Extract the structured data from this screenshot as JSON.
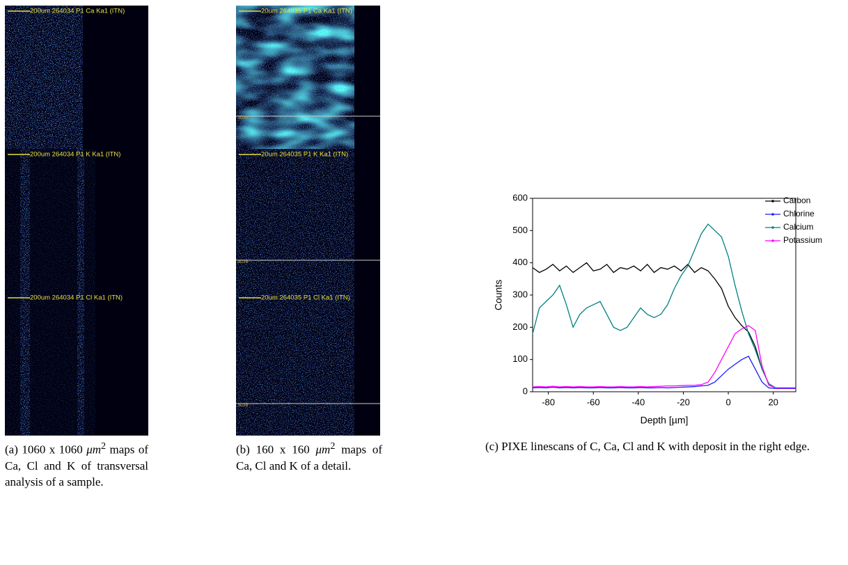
{
  "panels": {
    "a": {
      "maps": [
        {
          "label": "200um  264034 P1  Ca Ka1 (ITN)"
        },
        {
          "label": "200um  264034 P1  K Ka1 (ITN)"
        },
        {
          "label": "200um  264034 P1  Cl Ka1 (ITN)"
        }
      ],
      "caption": {
        "label": "(a)",
        "pre": "1060 x 1060",
        "unit": "μm",
        "sup": "2",
        "post": "maps of Ca, Cl and K of transversal analysis of a sample."
      }
    },
    "b": {
      "maps": [
        {
          "label": "20um  264035 P1  Ca Ka1 (ITN)",
          "marker": "3038"
        },
        {
          "label": "20um  264035 P1  K Ka1 (ITN)",
          "marker": "3038"
        },
        {
          "label": "20um  264035 P1  Cl Ka1 (ITN)",
          "marker": "3038"
        }
      ],
      "caption": {
        "label": "(b)",
        "pre": "160 x 160",
        "unit": "μm",
        "sup": "2",
        "post": "maps of Ca, Cl and K of a detail."
      }
    }
  },
  "chart_data": {
    "type": "line",
    "caption": {
      "label": "(c)",
      "text": "PIXE linescans of C, Ca, Cl and K with deposit in the right edge."
    },
    "x_label": "Depth [µm]",
    "y_label": "Counts",
    "x": [
      -87,
      -84,
      -81,
      -78,
      -75,
      -72,
      -69,
      -66,
      -63,
      -60,
      -57,
      -54,
      -51,
      -48,
      -45,
      -42,
      -39,
      -36,
      -33,
      -30,
      -27,
      -24,
      -21,
      -18,
      -15,
      -12,
      -9,
      -6,
      -3,
      0,
      3,
      6,
      9,
      12,
      15,
      18,
      21,
      24,
      27,
      30
    ],
    "series": [
      {
        "name": "Carbon",
        "color": "#000000",
        "values": [
          385,
          370,
          380,
          395,
          375,
          390,
          370,
          385,
          400,
          375,
          380,
          395,
          370,
          385,
          380,
          390,
          375,
          395,
          370,
          385,
          380,
          390,
          375,
          395,
          370,
          385,
          375,
          350,
          320,
          265,
          230,
          205,
          185,
          140,
          70,
          25,
          12,
          10,
          10,
          10
        ]
      },
      {
        "name": "Chlorine",
        "color": "#1a1aff",
        "values": [
          12,
          13,
          12,
          14,
          12,
          13,
          12,
          13,
          12,
          12,
          13,
          12,
          12,
          13,
          12,
          12,
          13,
          12,
          12,
          13,
          12,
          13,
          14,
          15,
          16,
          18,
          20,
          30,
          50,
          70,
          85,
          100,
          110,
          70,
          30,
          12,
          10,
          10,
          10,
          10
        ]
      },
      {
        "name": "Calcium",
        "color": "#008080",
        "values": [
          180,
          260,
          280,
          300,
          330,
          270,
          200,
          240,
          260,
          270,
          280,
          240,
          200,
          190,
          200,
          230,
          260,
          240,
          230,
          240,
          270,
          320,
          360,
          390,
          440,
          490,
          520,
          500,
          480,
          420,
          330,
          250,
          180,
          130,
          70,
          25,
          12,
          12,
          12,
          12
        ]
      },
      {
        "name": "Potassium",
        "color": "#ff00ff",
        "values": [
          15,
          16,
          15,
          17,
          15,
          16,
          15,
          16,
          15,
          15,
          16,
          15,
          15,
          16,
          15,
          15,
          16,
          15,
          16,
          17,
          18,
          18,
          19,
          20,
          20,
          22,
          30,
          60,
          100,
          140,
          180,
          195,
          205,
          190,
          80,
          20,
          12,
          12,
          12,
          12
        ]
      }
    ],
    "xlim": [
      -87,
      30
    ],
    "xticks": [
      -80,
      -60,
      -40,
      -20,
      0,
      20
    ],
    "ylim": [
      0,
      600
    ],
    "yticks": [
      0,
      100,
      200,
      300,
      400,
      500,
      600
    ]
  }
}
